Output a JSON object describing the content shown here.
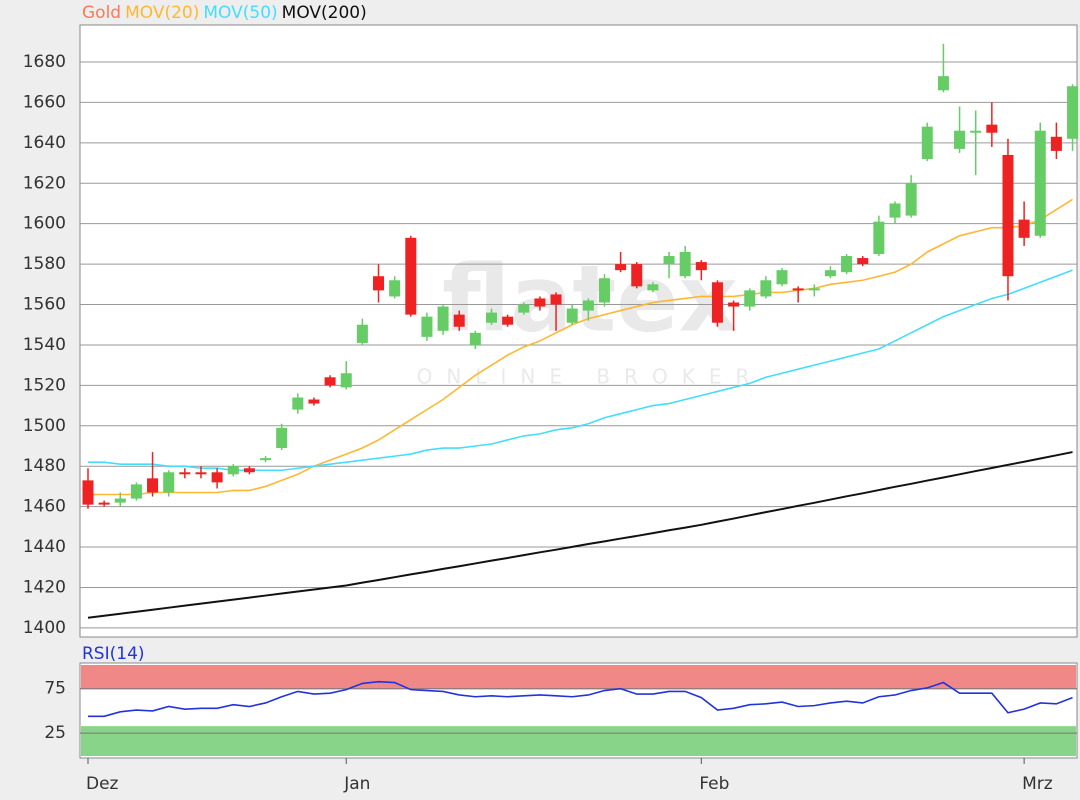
{
  "chart_data": [
    {
      "type": "candlestick",
      "name": "Gold",
      "color": "#ff7755",
      "up_color": "#66cc66",
      "down_color": "#ee2222",
      "watermark": {
        "text": "flatex",
        "subtext": "ONLINE BROKER"
      },
      "categories": [
        "Dez",
        null,
        null,
        null,
        null,
        null,
        null,
        null,
        null,
        null,
        null,
        null,
        null,
        null,
        null,
        null,
        "Jan",
        null,
        null,
        null,
        null,
        null,
        null,
        null,
        null,
        null,
        null,
        null,
        null,
        null,
        null,
        null,
        null,
        null,
        null,
        null,
        null,
        null,
        "Feb",
        null,
        null,
        null,
        null,
        null,
        null,
        null,
        null,
        null,
        null,
        null,
        null,
        null,
        null,
        null,
        null,
        null,
        null,
        null,
        "Mrz",
        null,
        null,
        null
      ],
      "open": [
        1473,
        1462,
        1462,
        1464,
        1474,
        1467,
        1477,
        1477,
        1477,
        1476,
        1479,
        1483,
        1489,
        1508,
        1513,
        1524,
        1519,
        1541,
        1574,
        1564,
        1593,
        1544,
        1547,
        1555,
        1540,
        1551,
        1554,
        1556,
        1563,
        1565,
        1551,
        1557,
        1561,
        1580,
        1580,
        1567,
        1580,
        1574,
        1581,
        1571,
        1561,
        1559,
        1564,
        1570,
        1568,
        1567,
        1574,
        1576,
        1583,
        1585,
        1603,
        1604,
        1632,
        1666,
        1637,
        1645,
        1649,
        1634,
        1602,
        1594,
        1643,
        1642
      ],
      "high": [
        1479,
        1463,
        1467,
        1472,
        1487,
        1478,
        1479,
        1480,
        1479,
        1481,
        1480,
        1485,
        1501,
        1516,
        1514,
        1525,
        1532,
        1553,
        1580,
        1574,
        1594,
        1556,
        1560,
        1557,
        1547,
        1558,
        1555,
        1561,
        1564,
        1566,
        1560,
        1563,
        1575,
        1586,
        1581,
        1571,
        1586,
        1589,
        1582,
        1572,
        1562,
        1568,
        1574,
        1578,
        1569,
        1570,
        1579,
        1585,
        1584,
        1604,
        1611,
        1624,
        1650,
        1689,
        1658,
        1656,
        1660,
        1642,
        1611,
        1650,
        1650,
        1669
      ],
      "low": [
        1459,
        1460,
        1460,
        1463,
        1465,
        1465,
        1474,
        1474,
        1469,
        1475,
        1476,
        1482,
        1488,
        1506,
        1510,
        1519,
        1518,
        1540,
        1561,
        1563,
        1554,
        1542,
        1545,
        1547,
        1538,
        1550,
        1549,
        1555,
        1557,
        1547,
        1550,
        1552,
        1559,
        1576,
        1568,
        1566,
        1573,
        1573,
        1572,
        1549,
        1547,
        1557,
        1563,
        1569,
        1561,
        1564,
        1573,
        1575,
        1579,
        1584,
        1600,
        1603,
        1631,
        1665,
        1635,
        1624,
        1638,
        1562,
        1589,
        1593,
        1632,
        1636
      ],
      "close": [
        1461,
        1461,
        1464,
        1471,
        1467,
        1477,
        1476,
        1476,
        1472,
        1480,
        1477,
        1484,
        1499,
        1514,
        1511,
        1520,
        1526,
        1550,
        1567,
        1572,
        1555,
        1554,
        1559,
        1549,
        1546,
        1556,
        1550,
        1560,
        1559,
        1560,
        1558,
        1562,
        1573,
        1577,
        1569,
        1570,
        1584,
        1586,
        1577,
        1551,
        1559,
        1567,
        1572,
        1577,
        1567,
        1568,
        1577,
        1584,
        1580,
        1601,
        1610,
        1620,
        1648,
        1673,
        1646,
        1646,
        1645,
        1574,
        1593,
        1646,
        1636,
        1668
      ],
      "series": [
        {
          "name": "MOV(20)",
          "color": "#ffb733",
          "values": [
            1466,
            1466,
            1466,
            1466,
            1467,
            1467,
            1467,
            1467,
            1467,
            1468,
            1468,
            1470,
            1473,
            1476,
            1480,
            1483,
            1486,
            1489,
            1493,
            1498,
            1503,
            1508,
            1513,
            1519,
            1525,
            1530,
            1535,
            1539,
            1542,
            1546,
            1550,
            1553,
            1555,
            1557,
            1559,
            1561,
            1562,
            1563,
            1564,
            1564,
            1564,
            1565,
            1566,
            1566,
            1567,
            1568,
            1570,
            1571,
            1572,
            1574,
            1576,
            1580,
            1586,
            1590,
            1594,
            1596,
            1598,
            1598,
            1599,
            1602,
            1607,
            1612
          ]
        },
        {
          "name": "MOV(50)",
          "color": "#44ddff",
          "values": [
            1482,
            1482,
            1481,
            1481,
            1481,
            1480,
            1480,
            1479,
            1479,
            1478,
            1478,
            1478,
            1478,
            1479,
            1480,
            1481,
            1482,
            1483,
            1484,
            1485,
            1486,
            1488,
            1489,
            1489,
            1490,
            1491,
            1493,
            1495,
            1496,
            1498,
            1499,
            1501,
            1504,
            1506,
            1508,
            1510,
            1511,
            1513,
            1515,
            1517,
            1519,
            1521,
            1524,
            1526,
            1528,
            1530,
            1532,
            1534,
            1536,
            1538,
            1542,
            1546,
            1550,
            1554,
            1557,
            1560,
            1563,
            1565,
            1568,
            1571,
            1574,
            1577
          ]
        },
        {
          "name": "MOV(200)",
          "color": "#111111",
          "values": [
            1405,
            1406,
            1407,
            1408,
            1409,
            1410,
            1411,
            1412,
            1413,
            1414,
            1415,
            1416,
            1417,
            1418,
            1419,
            1420,
            1421,
            1422.4,
            1423.7,
            1425.1,
            1426.5,
            1427.8,
            1429.2,
            1430.5,
            1431.9,
            1433.3,
            1434.6,
            1436,
            1437.4,
            1438.7,
            1440.1,
            1441.5,
            1442.8,
            1444.2,
            1445.5,
            1446.9,
            1448.3,
            1449.6,
            1451,
            1452.6,
            1454.1,
            1455.7,
            1457.3,
            1458.8,
            1460.4,
            1461.9,
            1463.5,
            1465.1,
            1466.6,
            1468.2,
            1469.8,
            1471.3,
            1472.9,
            1474.4,
            1476,
            1477.6,
            1479.1,
            1480.7,
            1482.2,
            1483.8,
            1485.4,
            1487
          ]
        }
      ],
      "ylim": [
        1395.5,
        1698.3
      ],
      "yticks": [
        1400,
        1420,
        1440,
        1460,
        1480,
        1500,
        1520,
        1540,
        1560,
        1580,
        1600,
        1620,
        1640,
        1660,
        1680
      ],
      "grid": true
    },
    {
      "type": "line",
      "series": [
        {
          "name": "RSI(14)",
          "color": "#2233dd",
          "values": [
            44,
            44,
            49,
            51,
            50,
            55,
            52,
            53,
            53,
            57,
            55,
            59,
            66,
            72,
            69,
            70,
            74,
            81,
            83,
            82,
            74,
            73,
            72,
            68,
            66,
            67,
            66,
            67,
            68,
            67,
            66,
            68,
            73,
            75,
            69,
            69,
            72,
            72,
            65,
            51,
            53,
            57,
            58,
            60,
            55,
            56,
            59,
            61,
            59,
            66,
            68,
            73,
            76,
            82,
            70,
            70,
            70,
            48,
            52,
            59,
            58,
            65
          ]
        }
      ],
      "band_colors": {
        "upper": "#f08888",
        "lower": "#88d488"
      },
      "ylim": [
        -3,
        104
      ],
      "yticks": [
        25,
        75
      ],
      "grid": true
    }
  ]
}
